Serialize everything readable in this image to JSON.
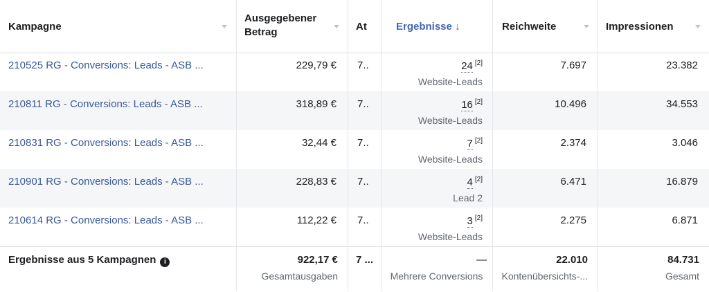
{
  "header": {
    "kampagne": "Kampagne",
    "betrag_line1": "Ausgegebener",
    "betrag_line2": "Betrag",
    "at": "At",
    "ergebnisse": "Ergebnisse",
    "sort_arrow": "↓",
    "reichweite": "Reichweite",
    "impressionen": "Impressionen"
  },
  "rows": [
    {
      "name": "210525 RG - Conversions: Leads - ASB ...",
      "betrag": "229,79 €",
      "at": "7..",
      "result": "24",
      "note": "[2]",
      "result_type": "Website-Leads",
      "reichweite": "7.697",
      "impressionen": "23.382"
    },
    {
      "name": "210811 RG - Conversions: Leads - ASB ...",
      "betrag": "318,89 €",
      "at": "7..",
      "result": "16",
      "note": "[2]",
      "result_type": "Website-Leads",
      "reichweite": "10.496",
      "impressionen": "34.553"
    },
    {
      "name": "210831 RG - Conversions: Leads - ASB ...",
      "betrag": "32,44 €",
      "at": "7..",
      "result": "7",
      "note": "[2]",
      "result_type": "Website-Leads",
      "reichweite": "2.374",
      "impressionen": "3.046"
    },
    {
      "name": "210901 RG - Conversions: Leads - ASB ...",
      "betrag": "228,83 €",
      "at": "7..",
      "result": "4",
      "note": "[2]",
      "result_type": "Lead 2",
      "reichweite": "6.471",
      "impressionen": "16.879"
    },
    {
      "name": "210614 RG - Conversions: Leads - ASB ...",
      "betrag": "112,22 €",
      "at": "7..",
      "result": "3",
      "note": "[2]",
      "result_type": "Website-Leads",
      "reichweite": "2.275",
      "impressionen": "6.871"
    }
  ],
  "total": {
    "label": "Ergebnisse aus 5 Kampagnen",
    "info_icon": "i",
    "betrag": "922,17 €",
    "betrag_sub": "Gesamtausgaben",
    "at": "7 ...",
    "ergebnisse": "—",
    "ergebnisse_sub": "Mehrere Conversions",
    "reichweite": "22.010",
    "reichweite_sub": "Kontenübersichts-...",
    "impressionen": "84.731",
    "impressionen_sub": "Gesamt"
  },
  "colors": {
    "link": "#385898",
    "sorted_header": "#4267b2",
    "alt_row": "#f5f6f7"
  }
}
